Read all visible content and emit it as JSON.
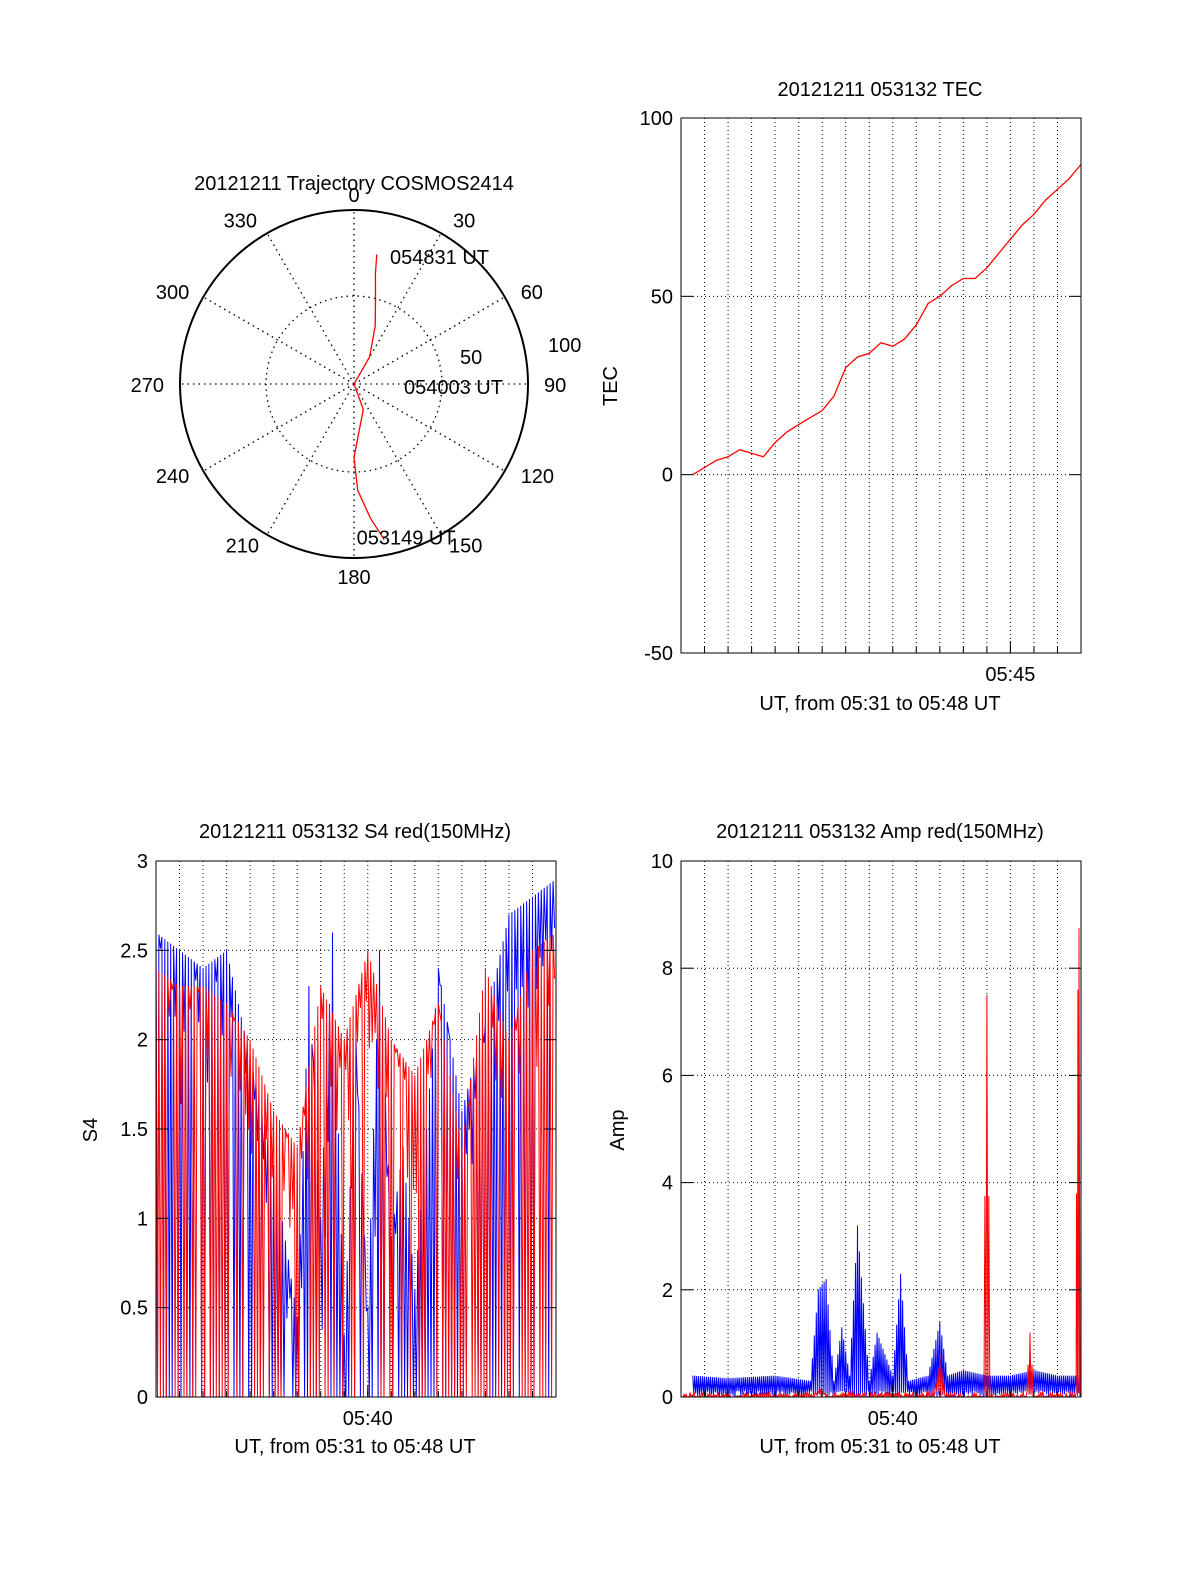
{
  "colors": {
    "red": "#ff0000",
    "blue": "#0000ff",
    "axis": "#000000",
    "grid": "#000000"
  },
  "chart_data": [
    {
      "id": "trajectory",
      "type": "polar",
      "title": "20121211 Trajectory COSMOS2414",
      "azimuth_labels": [
        "0",
        "30",
        "60",
        "90",
        "120",
        "150",
        "180",
        "210",
        "240",
        "270",
        "300",
        "330"
      ],
      "radius_labels": [
        "50",
        "100"
      ],
      "series": [
        {
          "color": "red",
          "points_az_el": [
            [
              169,
              8
            ],
            [
              173,
              20
            ],
            [
              178,
              35
            ],
            [
              180,
              52
            ],
            [
              160,
              76
            ],
            [
              60,
              90
            ],
            [
              30,
              74
            ],
            [
              20,
              58
            ],
            [
              14,
              44
            ],
            [
              11,
              32
            ],
            [
              10,
              22
            ]
          ]
        }
      ],
      "annotations": [
        {
          "text": "054831 UT",
          "az": 19,
          "el": 20
        },
        {
          "text": "054003 UT",
          "az": 92,
          "el": 60
        },
        {
          "text": "053149 UT",
          "az": 176,
          "el": 11
        }
      ]
    },
    {
      "id": "tec",
      "type": "line",
      "title": "20121211 053132 TEC",
      "ylabel": "TEC",
      "xlabel": "UT, from 05:31 to 05:48 UT",
      "xlim": [
        "05:31:00",
        "05:48:00"
      ],
      "xticks": [
        "05:45"
      ],
      "ylim": [
        -50,
        100
      ],
      "yticks": [
        "-50",
        "0",
        "50",
        "100"
      ],
      "grid": true,
      "series": [
        {
          "color": "red",
          "x": [
            "05:31:30",
            "05:32:00",
            "05:32:30",
            "05:33:00",
            "05:33:30",
            "05:34:00",
            "05:34:30",
            "05:35:00",
            "05:35:30",
            "05:36:00",
            "05:36:30",
            "05:37:00",
            "05:37:30",
            "05:38:00",
            "05:38:30",
            "05:39:00",
            "05:39:30",
            "05:40:00",
            "05:40:30",
            "05:41:00",
            "05:41:30",
            "05:42:00",
            "05:42:30",
            "05:43:00",
            "05:43:30",
            "05:44:00",
            "05:44:30",
            "05:45:00",
            "05:45:30",
            "05:46:00",
            "05:46:30",
            "05:47:00",
            "05:47:30",
            "05:48:00"
          ],
          "y": [
            0,
            2,
            4,
            5,
            7,
            6,
            5,
            9,
            12,
            14,
            16,
            18,
            22,
            30,
            33,
            34,
            37,
            36,
            38,
            42,
            48,
            50,
            53,
            55,
            55,
            58,
            62,
            66,
            70,
            73,
            77,
            80,
            83,
            87
          ]
        }
      ]
    },
    {
      "id": "s4",
      "type": "line",
      "title": "20121211 053132 S4 red(150MHz)",
      "ylabel": "S4",
      "xlabel": "UT, from 05:31 to 05:48 UT",
      "xlim": [
        "05:31:00",
        "05:48:00"
      ],
      "xticks": [
        "05:40"
      ],
      "ylim": [
        0,
        3
      ],
      "yticks": [
        "0",
        "0.5",
        "1",
        "1.5",
        "2",
        "2.5",
        "3"
      ],
      "grid": true,
      "series": [
        {
          "color": "blue",
          "x": [
            "05:31:00",
            "05:32:00",
            "05:33:00",
            "05:34:00",
            "05:35:00",
            "05:36:00",
            "05:37:00",
            "05:37:30",
            "05:38:00",
            "05:38:30",
            "05:39:00",
            "05:39:30",
            "05:40:00",
            "05:40:30",
            "05:41:00",
            "05:41:30",
            "05:42:00",
            "05:43:00",
            "05:44:00",
            "05:45:00",
            "05:46:00",
            "05:47:00",
            "05:48:00"
          ],
          "y": [
            2.6,
            2.5,
            2.4,
            2.5,
            1.9,
            1.3,
            0.45,
            2.3,
            1.0,
            2.6,
            0.35,
            2.0,
            0.5,
            2.5,
            0.9,
            1.4,
            0.6,
            2.4,
            1.6,
            2.1,
            2.7,
            2.8,
            2.9
          ]
        },
        {
          "color": "red",
          "x": [
            "05:31:00",
            "05:32:00",
            "05:33:00",
            "05:34:00",
            "05:35:00",
            "05:36:00",
            "05:37:00",
            "05:38:00",
            "05:39:00",
            "05:40:00",
            "05:41:00",
            "05:42:00",
            "05:43:00",
            "05:44:00",
            "05:45:00",
            "05:46:00",
            "05:47:00",
            "05:48:00"
          ],
          "y": [
            2.4,
            2.3,
            2.3,
            2.2,
            2.0,
            1.6,
            1.4,
            2.3,
            2.0,
            2.5,
            2.0,
            1.8,
            2.2,
            1.4,
            2.4,
            2.0,
            2.5,
            2.6
          ]
        }
      ]
    },
    {
      "id": "amp",
      "type": "line",
      "title": "20121211 053132 Amp red(150MHz)",
      "ylabel": "Amp",
      "xlabel": "UT, from 05:31 to 05:48 UT",
      "xlim": [
        "05:31:00",
        "05:48:00"
      ],
      "xticks": [
        "05:40"
      ],
      "ylim": [
        0,
        10
      ],
      "yticks": [
        "0",
        "2",
        "4",
        "6",
        "8",
        "10"
      ],
      "grid": true,
      "series": [
        {
          "color": "blue",
          "x": [
            "05:31:30",
            "05:33:00",
            "05:35:00",
            "05:36:30",
            "05:36:50",
            "05:37:10",
            "05:37:30",
            "05:37:50",
            "05:38:10",
            "05:38:30",
            "05:39:00",
            "05:39:20",
            "05:40:00",
            "05:40:20",
            "05:40:40",
            "05:41:30",
            "05:42:00",
            "05:42:20",
            "05:43:00",
            "05:44:00",
            "05:45:00",
            "05:46:00",
            "05:47:00",
            "05:48:00"
          ],
          "y": [
            0.4,
            0.35,
            0.4,
            0.3,
            2.0,
            2.2,
            0.3,
            1.3,
            0.4,
            3.2,
            0.3,
            1.2,
            0.4,
            2.3,
            0.3,
            0.4,
            1.4,
            0.4,
            0.5,
            0.4,
            0.4,
            0.5,
            0.4,
            0.4
          ]
        },
        {
          "color": "red",
          "x": [
            "05:31:00",
            "05:36:40",
            "05:36:55",
            "05:37:10",
            "05:41:45",
            "05:42:00",
            "05:42:15",
            "05:43:50",
            "05:44:00",
            "05:44:10",
            "05:45:40",
            "05:45:50",
            "05:46:00",
            "05:47:45",
            "05:47:52",
            "05:47:58"
          ],
          "y": [
            0,
            0,
            0.15,
            0,
            0,
            0.8,
            0,
            0,
            7.5,
            0,
            0,
            1.2,
            0,
            0,
            7.6,
            9.9
          ]
        }
      ]
    }
  ]
}
